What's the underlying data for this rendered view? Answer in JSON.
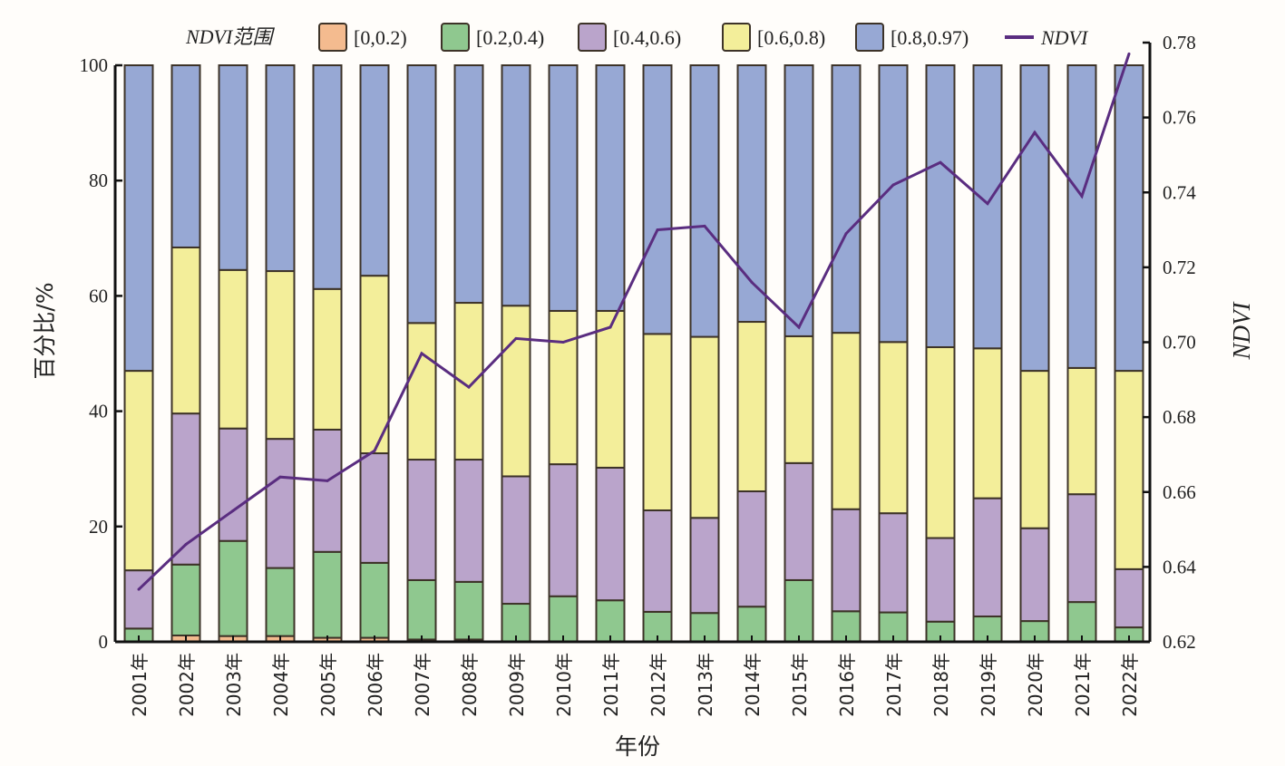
{
  "chart_data": {
    "type": "bar",
    "stacked": true,
    "title": "",
    "xlabel": "年份",
    "ylabel": "百分比/%",
    "y2label": "NDVI",
    "ylim": [
      0,
      100
    ],
    "y2lim": [
      0.62,
      0.78
    ],
    "yticks": [
      "0",
      "20",
      "40",
      "60",
      "80",
      "100"
    ],
    "yticks_values": [
      0,
      20,
      40,
      60,
      80,
      100
    ],
    "y2ticks": [
      "0.62",
      "0.64",
      "0.66",
      "0.68",
      "0.70",
      "0.72",
      "0.74",
      "0.76",
      "0.78"
    ],
    "y2ticks_values": [
      0.62,
      0.64,
      0.66,
      0.68,
      0.7,
      0.72,
      0.74,
      0.76,
      0.78
    ],
    "legend_title": "NDVI范围",
    "legend_position": "top",
    "categories": [
      "2001年",
      "2002年",
      "2003年",
      "2004年",
      "2005年",
      "2006年",
      "2007年",
      "2008年",
      "2009年",
      "2010年",
      "2011年",
      "2012年",
      "2013年",
      "2014年",
      "2015年",
      "2016年",
      "2017年",
      "2018年",
      "2019年",
      "2020年",
      "2021年",
      "2022年"
    ],
    "series": [
      {
        "name": "[0,0.2)",
        "color": "#f4bb8f",
        "values": [
          0.0,
          1.1,
          1.0,
          1.0,
          0.7,
          0.7,
          0.4,
          0.4,
          0,
          0,
          0,
          0,
          0,
          0,
          0,
          0,
          0,
          0,
          0,
          0,
          0,
          0
        ]
      },
      {
        "name": "[0.2,0.4)",
        "color": "#8fc88f",
        "values": [
          2.3,
          12.3,
          16.5,
          11.8,
          14.9,
          13.0,
          10.3,
          10.0,
          6.6,
          7.9,
          7.2,
          5.2,
          5.0,
          6.1,
          10.7,
          5.3,
          5.1,
          3.5,
          4.4,
          3.6,
          6.9,
          2.5
        ]
      },
      {
        "name": "[0.4,0.6)",
        "color": "#baa4cb",
        "values": [
          10.1,
          26.2,
          19.5,
          22.4,
          21.2,
          19.0,
          20.9,
          21.2,
          22.1,
          22.9,
          23.0,
          17.6,
          16.5,
          20.0,
          20.3,
          17.7,
          17.2,
          14.5,
          20.5,
          16.1,
          18.7,
          10.1
        ]
      },
      {
        "name": "[0.6,0.8)",
        "color": "#f3ee9a",
        "values": [
          34.6,
          28.8,
          27.5,
          29.1,
          24.4,
          30.8,
          23.7,
          27.2,
          29.6,
          26.6,
          27.2,
          30.6,
          31.4,
          29.4,
          22.0,
          30.6,
          29.7,
          33.1,
          26.0,
          27.3,
          21.9,
          34.4
        ]
      },
      {
        "name": "[0.8,0.97)",
        "color": "#97a8d4",
        "values": [
          53.0,
          31.6,
          35.5,
          35.7,
          38.8,
          36.5,
          44.7,
          41.2,
          41.7,
          42.6,
          42.6,
          46.6,
          47.1,
          44.5,
          47.0,
          46.4,
          48.0,
          48.9,
          49.1,
          53.0,
          52.5,
          53.0
        ]
      }
    ],
    "line": {
      "name": "NDVI",
      "color": "#5a2d80",
      "axis": "right",
      "values": [
        0.634,
        0.646,
        0.655,
        0.664,
        0.663,
        0.671,
        0.697,
        0.688,
        0.701,
        0.7,
        0.704,
        0.73,
        0.731,
        0.716,
        0.704,
        0.729,
        0.742,
        0.748,
        0.737,
        0.756,
        0.739,
        0.777
      ]
    }
  }
}
